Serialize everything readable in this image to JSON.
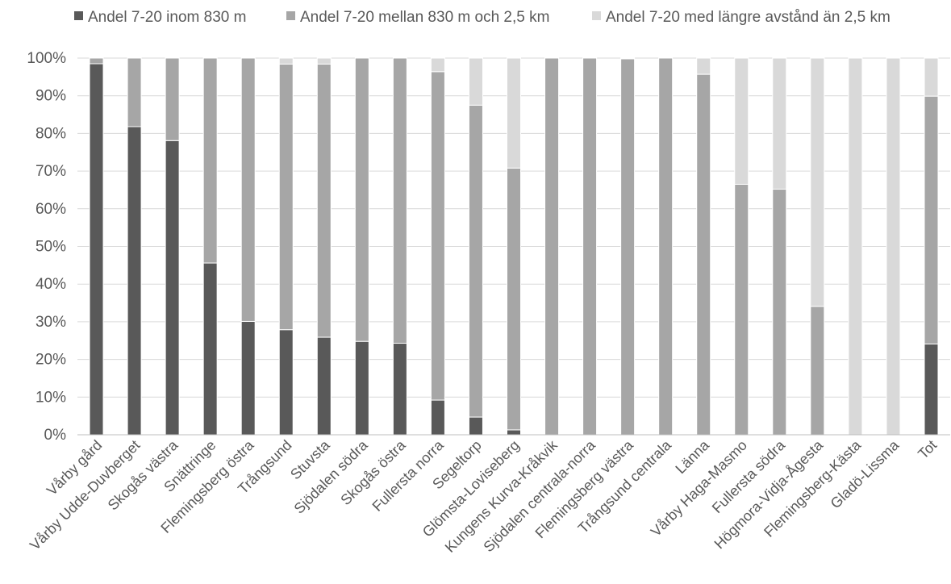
{
  "chart_data": {
    "type": "bar",
    "stacked": true,
    "categories": [
      "Vårby gård",
      "Vårby Udde-Duvberget",
      "Skogås västra",
      "Snättringe",
      "Flemingsberg östra",
      "Trångsund",
      "Stuvsta",
      "Sjödalen södra",
      "Skogås östra",
      "Fullersta norra",
      "Segeltorp",
      "Glömsta-Loviseberg",
      "Kungens Kurva-Kråkvik",
      "Sjödalen centrala-norra",
      "Flemingsberg västra",
      "Trångsund centrala",
      "Länna",
      "Vårby Haga-Masmo",
      "Fullersta södra",
      "Högmora-Vidja-Ågesta",
      "Flemingsberg-Kästa",
      "Gladö-Lissma",
      "Tot"
    ],
    "series": [
      {
        "name": "Andel 7-20 inom 830 m",
        "color": "#595959",
        "values": [
          98.5,
          81.8,
          78.1,
          45.6,
          30.1,
          27.9,
          25.9,
          24.8,
          24.3,
          9.2,
          4.7,
          1.3,
          0,
          0,
          0,
          0,
          0,
          0,
          0,
          0,
          0,
          0,
          24.1
        ]
      },
      {
        "name": "Andel 7-20 mellan 830 m och 2,5 km",
        "color": "#a6a6a6",
        "values": [
          1.5,
          18.2,
          21.9,
          54.4,
          69.9,
          70.5,
          72.5,
          75.2,
          75.7,
          87.2,
          82.8,
          69.5,
          100,
          100,
          99.8,
          100,
          95.7,
          66.5,
          65.2,
          34.1,
          0,
          0,
          65.8
        ]
      },
      {
        "name": "Andel 7-20 med längre avstånd än 2,5 km",
        "color": "#d9d9d9",
        "values": [
          0,
          0,
          0,
          0,
          0,
          1.6,
          1.6,
          0,
          0,
          3.6,
          12.5,
          29.2,
          0,
          0,
          0.2,
          0,
          4.3,
          33.5,
          34.8,
          65.9,
          100,
          100,
          10.1
        ]
      }
    ],
    "yticks": [
      "0%",
      "10%",
      "20%",
      "30%",
      "40%",
      "50%",
      "60%",
      "70%",
      "80%",
      "90%",
      "100%"
    ],
    "ylim": [
      0,
      100
    ],
    "grid": true,
    "legend_position": "top"
  }
}
